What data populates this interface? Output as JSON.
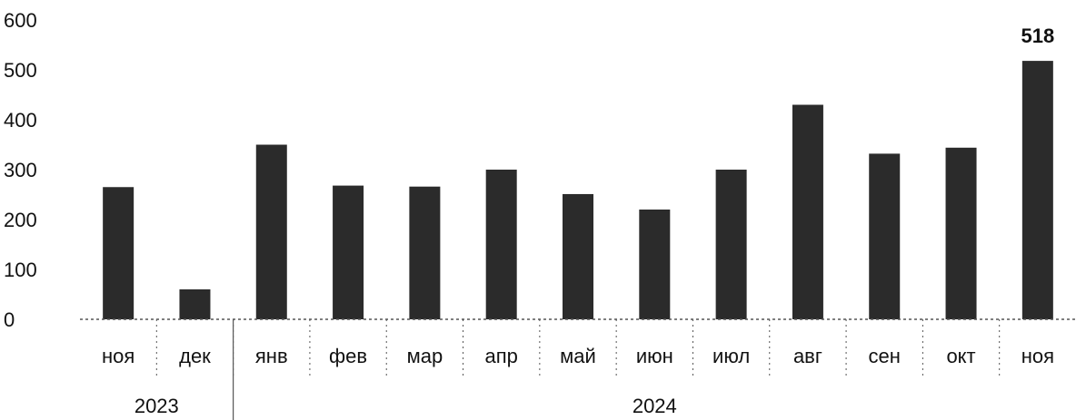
{
  "chart_data": {
    "type": "bar",
    "categories": [
      "ноя",
      "дек",
      "янв",
      "фев",
      "мар",
      "апр",
      "май",
      "июн",
      "июл",
      "авг",
      "сен",
      "окт",
      "ноя"
    ],
    "year_groups": [
      {
        "label": "2023",
        "count": 2
      },
      {
        "label": "2024",
        "count": 11
      }
    ],
    "values": [
      265,
      60,
      350,
      268,
      266,
      300,
      251,
      220,
      300,
      430,
      332,
      344,
      518
    ],
    "data_labels": [
      {
        "category_index": 12,
        "text": "518"
      }
    ],
    "yticks": [
      "0",
      "100",
      "200",
      "300",
      "400",
      "500",
      "600"
    ],
    "ylim": [
      0,
      600
    ],
    "title": "",
    "xlabel": "",
    "ylabel": "",
    "grid": false,
    "legend": "none",
    "colors": {
      "bar": "#2b2b2b",
      "axis": "#555555",
      "text": "#111111"
    }
  }
}
